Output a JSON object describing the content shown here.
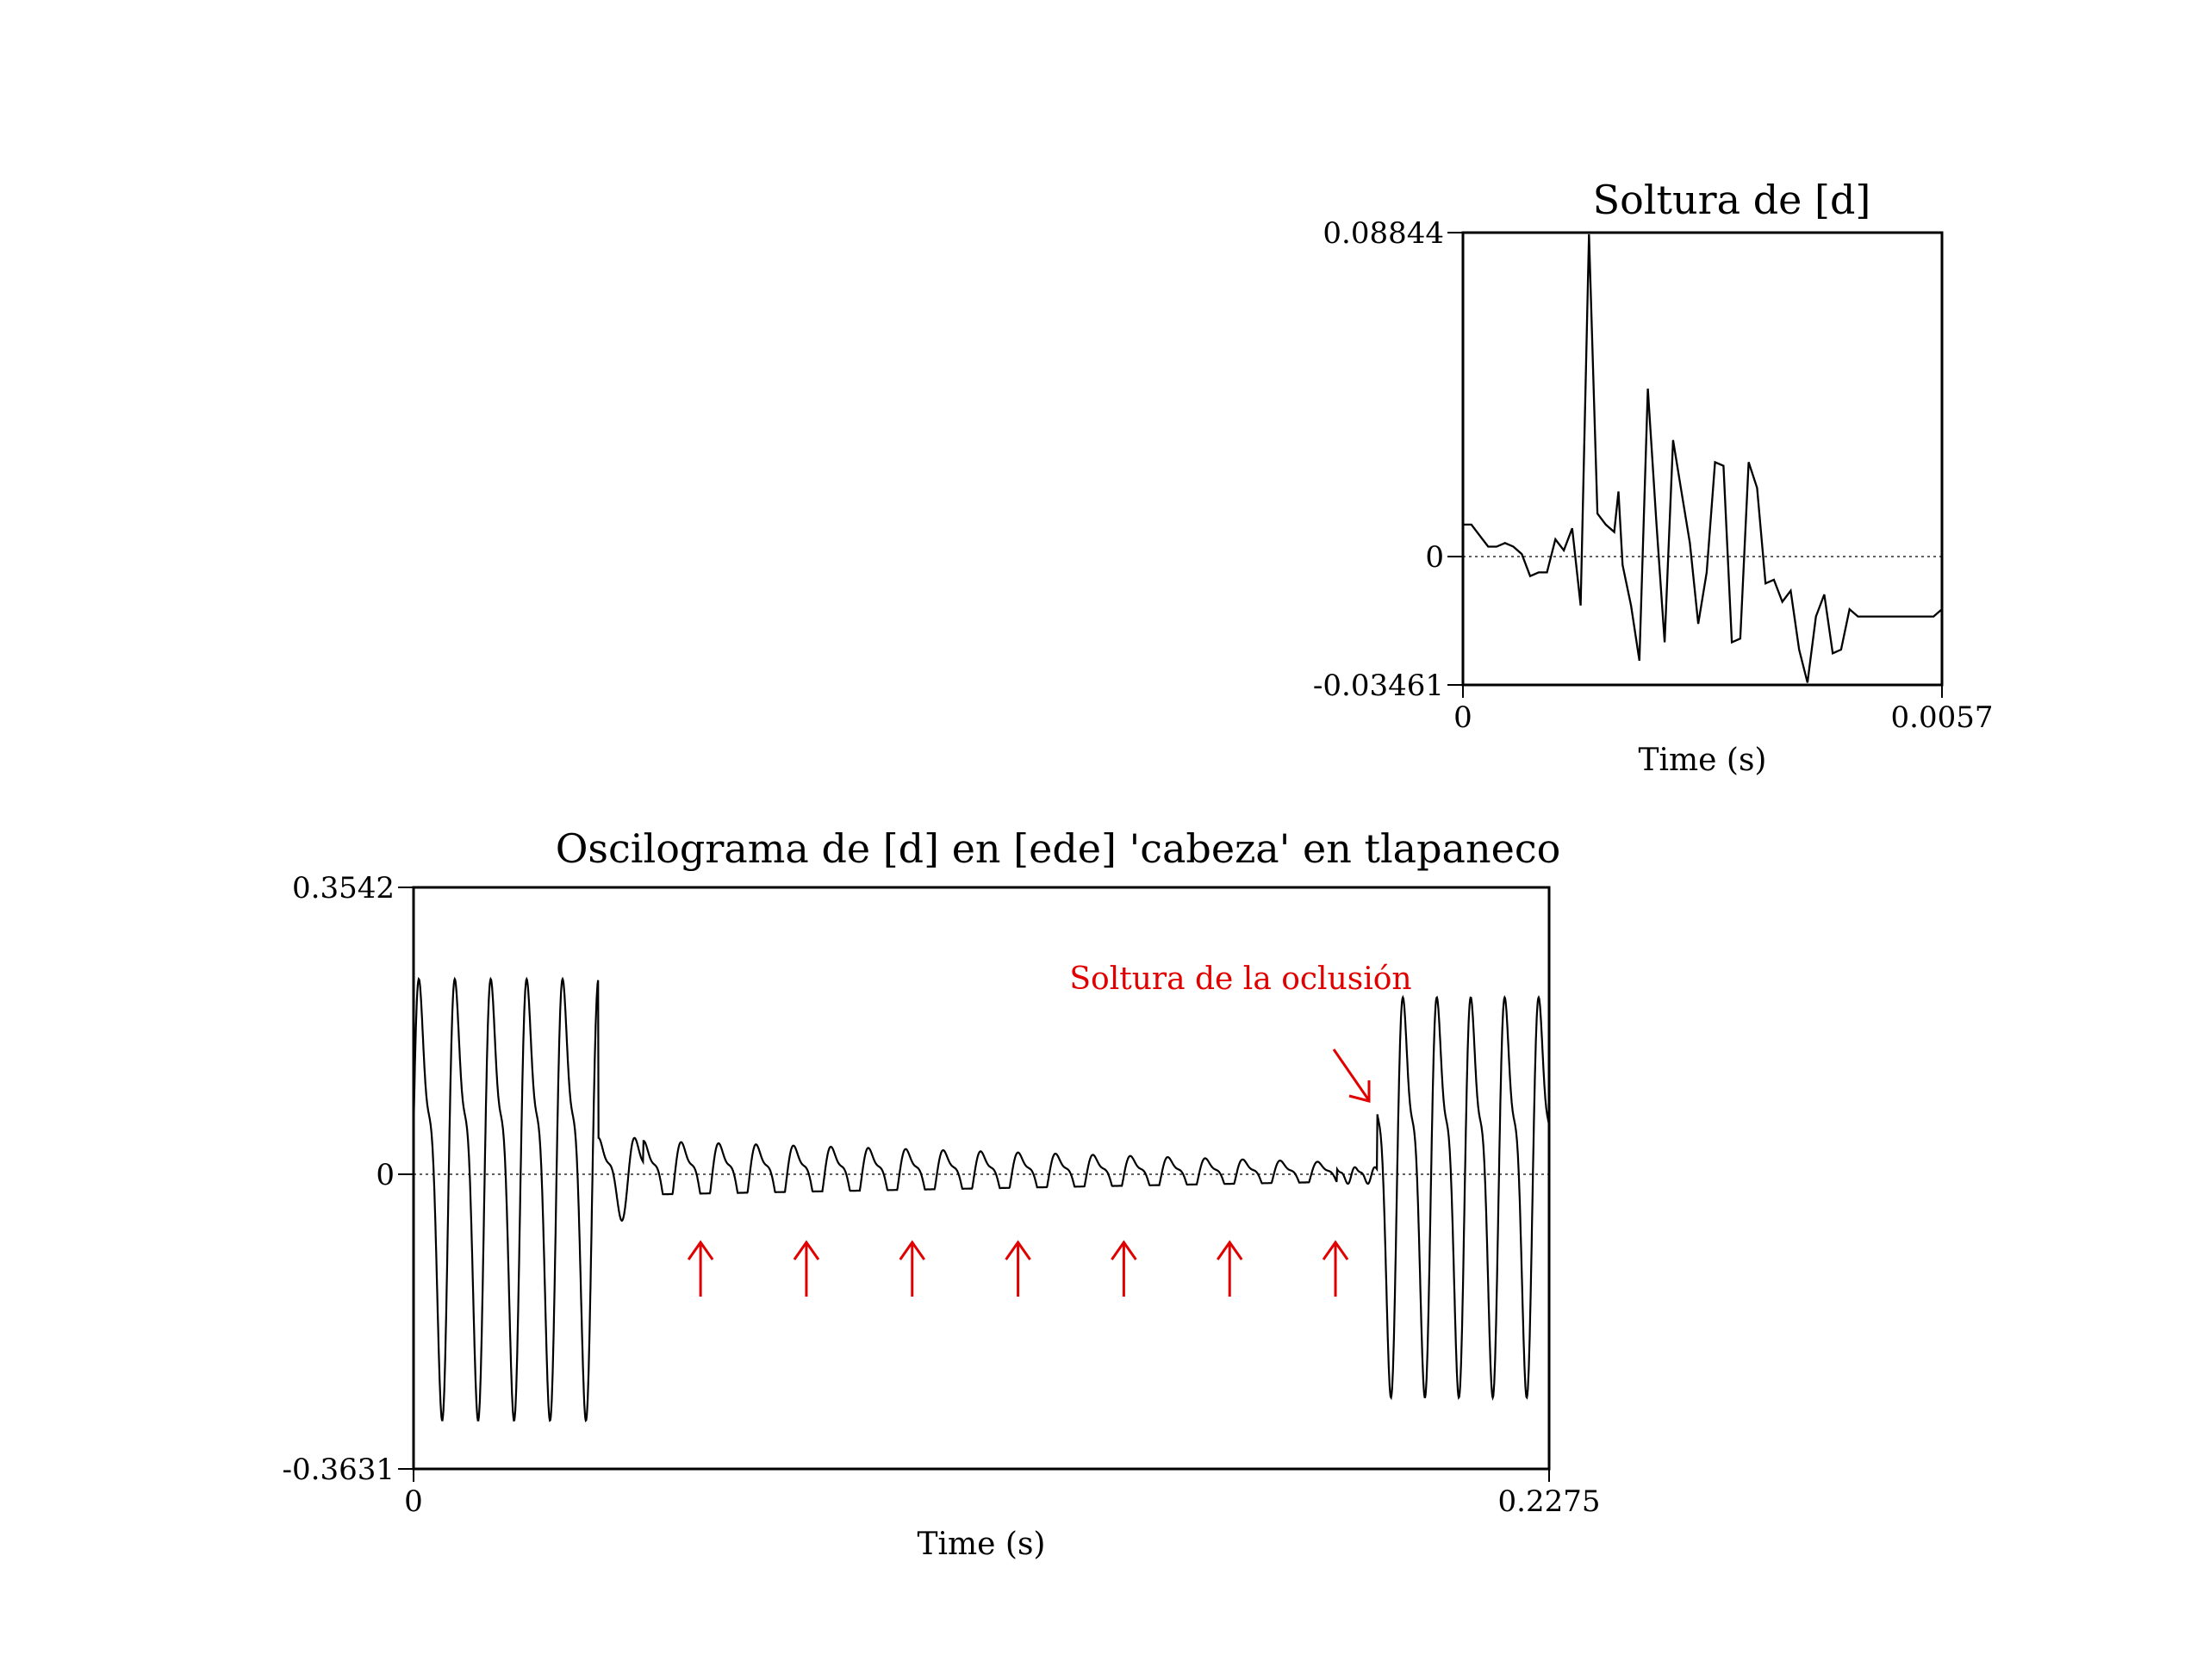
{
  "chart_data": [
    {
      "type": "line",
      "title": "Soltura de [d]",
      "xlabel": "Time (s)",
      "ylabel": "",
      "xlim": [
        0,
        0.0057
      ],
      "ylim": [
        -0.03461,
        0.08844
      ],
      "xtick_labels": [
        "0",
        "0.0057"
      ],
      "ytick_labels": [
        "0.08844",
        "0",
        "-0.03461"
      ],
      "zero_line": "dotted",
      "series": [
        {
          "x": [
            0,
            0.0001,
            0.0002,
            0.0003,
            0.0004,
            0.0005,
            0.0006,
            0.0007,
            0.0008,
            0.0009,
            0.001,
            0.0011,
            0.0012,
            0.0013,
            0.0014,
            0.0015,
            0.0016,
            0.0017,
            0.0018,
            0.00185,
            0.0019,
            0.002,
            0.0021,
            0.0022,
            0.0023,
            0.0024,
            0.0025,
            0.0026,
            0.0027,
            0.0028,
            0.0029,
            0.003,
            0.0031,
            0.0032,
            0.0033,
            0.0034,
            0.0035,
            0.0036,
            0.0037,
            0.0038,
            0.0039,
            0.004,
            0.0041,
            0.0042,
            0.0043,
            0.0044,
            0.0045,
            0.0046,
            0.0047,
            0.0048,
            0.0049,
            0.005,
            0.0051,
            0.0052,
            0.0053,
            0.0054,
            0.0055,
            0.0056,
            0.0057
          ],
          "y": [
            0.009,
            0.009,
            0.006,
            0.003,
            0.003,
            0.004,
            0.003,
            0.001,
            -0.005,
            -0.004,
            -0.004,
            0.005,
            0.002,
            0.008,
            -0.013,
            0.088,
            0.012,
            0.009,
            0.007,
            0.018,
            -0.002,
            -0.013,
            -0.028,
            0.046,
            0.01,
            -0.023,
            0.032,
            0.018,
            0.004,
            -0.018,
            -0.004,
            0.026,
            0.025,
            -0.023,
            -0.022,
            0.026,
            0.019,
            -0.007,
            -0.006,
            -0.012,
            -0.009,
            -0.025,
            -0.034,
            -0.016,
            -0.01,
            -0.026,
            -0.025,
            -0.014,
            -0.016,
            -0.016,
            -0.016,
            -0.016,
            -0.016,
            -0.016,
            -0.016,
            -0.016,
            -0.016,
            -0.016,
            -0.014
          ]
        }
      ]
    },
    {
      "type": "line",
      "title": "Oscilograma de [d] en [ede] 'cabeza' en tlapaneco",
      "xlabel": "Time (s)",
      "ylabel": "",
      "xlim": [
        0,
        0.2275
      ],
      "ylim": [
        -0.3631,
        0.3542
      ],
      "xtick_labels": [
        "0",
        "0.2275"
      ],
      "ytick_labels": [
        "0.3542",
        "0",
        "-0.3631"
      ],
      "zero_line": "dotted",
      "segments": [
        {
          "x_start": 0.0,
          "x_end": 0.037,
          "period": 0.0072,
          "amplitude": 0.32
        },
        {
          "x_start": 0.037,
          "x_end": 0.046,
          "period": 0.0072,
          "amplitude": 0.06
        },
        {
          "x_start": 0.046,
          "x_end": 0.185,
          "period": 0.0075,
          "amplitude_start": 0.055,
          "amplitude_end": 0.02
        },
        {
          "x_start": 0.185,
          "x_end": 0.193,
          "period": 0.004,
          "amplitude": 0.012
        },
        {
          "x_start": 0.193,
          "x_end": 0.2275,
          "period": 0.0068,
          "amplitude": 0.29
        }
      ],
      "annotations": [
        {
          "text": "Soltura de la oclusión",
          "color": "#e00000",
          "x": 0.192,
          "y": 0.09,
          "arrow": "down-right"
        }
      ],
      "markers": [
        {
          "symbol": "↑",
          "color": "#e00000",
          "x": [
            0.0575,
            0.0787,
            0.0999,
            0.1211,
            0.1423,
            0.1635,
            0.1847
          ]
        }
      ]
    }
  ]
}
